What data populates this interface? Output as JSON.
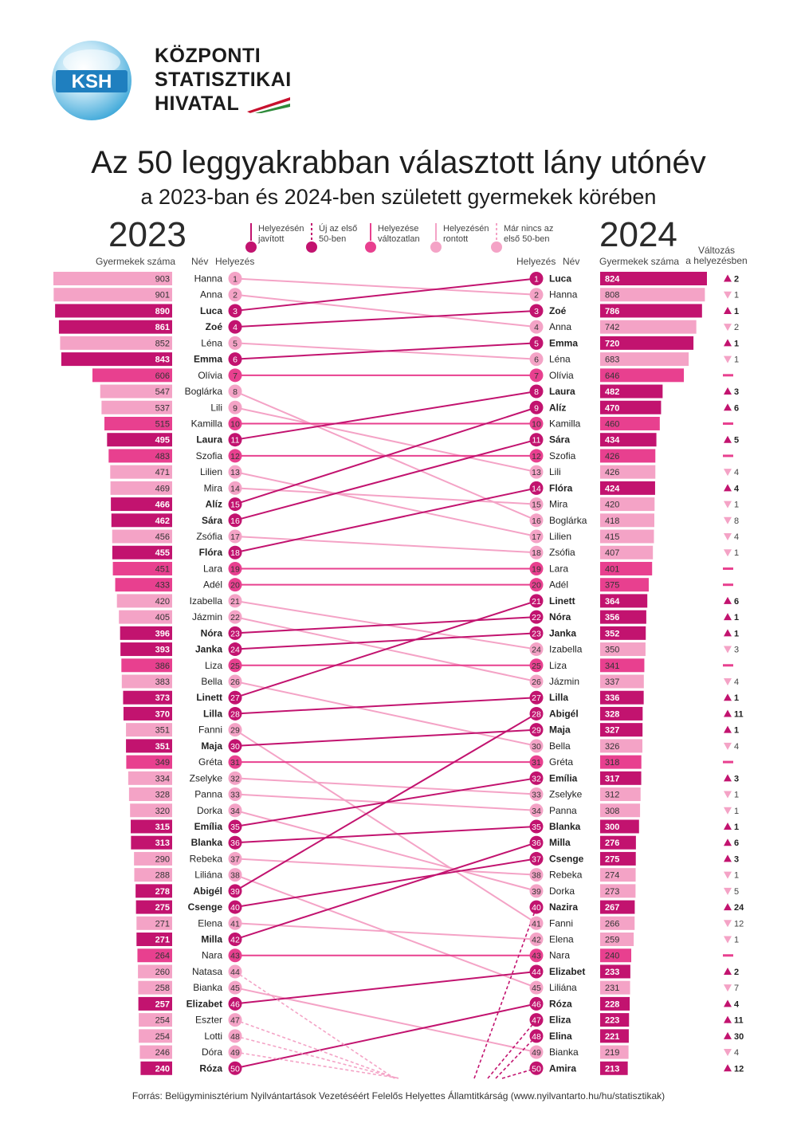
{
  "header": {
    "logo_mark": "KSH",
    "org_lines": [
      "KÖZPONTI",
      "STATISZTIKAI",
      "HIVATAL"
    ],
    "title": "Az 50 leggyakrabban választott lány utónév",
    "subtitle": "a 2023-ban és 2024-ben született gyermekek körében"
  },
  "columns": {
    "year_left": "2023",
    "year_right": "2024",
    "count_label": "Gyermekek száma",
    "name_label": "Név",
    "rank_label": "Helyezés",
    "change_label_1": "Változás",
    "change_label_2": "a helyezésben"
  },
  "legend": [
    {
      "line1": "Helyezésén",
      "line2": "javított",
      "kind": "improved"
    },
    {
      "line1": "Új az első",
      "line2": "50-ben",
      "kind": "new"
    },
    {
      "line1": "Helyezése",
      "line2": "változatlan",
      "kind": "same"
    },
    {
      "line1": "Helyezésén",
      "line2": "rontott",
      "kind": "worse"
    },
    {
      "line1": "Már nincs az",
      "line2": "első 50-ben",
      "kind": "dropped"
    }
  ],
  "colors": {
    "improved": "#c2136f",
    "same": "#e8408f",
    "worse": "#f4a3c6",
    "new": "#c2136f",
    "dropped": "#f4a3c6"
  },
  "source": "Forrás: Belügyminisztérium Nyilvántartások Vezetéséért Felelős Helyettes Államtitkárság (www.nyilvantarto.hu/hu/statisztikak)",
  "chart_data": {
    "type": "bump",
    "left": {
      "year": "2023",
      "rows": [
        {
          "rank": 1,
          "name": "Hanna",
          "count": 903,
          "status": "worse"
        },
        {
          "rank": 2,
          "name": "Anna",
          "count": 901,
          "status": "worse"
        },
        {
          "rank": 3,
          "name": "Luca",
          "count": 890,
          "status": "improved"
        },
        {
          "rank": 4,
          "name": "Zoé",
          "count": 861,
          "status": "improved"
        },
        {
          "rank": 5,
          "name": "Léna",
          "count": 852,
          "status": "worse"
        },
        {
          "rank": 6,
          "name": "Emma",
          "count": 843,
          "status": "improved"
        },
        {
          "rank": 7,
          "name": "Olívia",
          "count": 606,
          "status": "same"
        },
        {
          "rank": 8,
          "name": "Boglárka",
          "count": 547,
          "status": "worse"
        },
        {
          "rank": 9,
          "name": "Lili",
          "count": 537,
          "status": "worse"
        },
        {
          "rank": 10,
          "name": "Kamilla",
          "count": 515,
          "status": "same"
        },
        {
          "rank": 11,
          "name": "Laura",
          "count": 495,
          "status": "improved"
        },
        {
          "rank": 12,
          "name": "Szofia",
          "count": 483,
          "status": "same"
        },
        {
          "rank": 13,
          "name": "Lilien",
          "count": 471,
          "status": "worse"
        },
        {
          "rank": 14,
          "name": "Mira",
          "count": 469,
          "status": "worse"
        },
        {
          "rank": 15,
          "name": "Alíz",
          "count": 466,
          "status": "improved"
        },
        {
          "rank": 16,
          "name": "Sára",
          "count": 462,
          "status": "improved"
        },
        {
          "rank": 17,
          "name": "Zsófia",
          "count": 456,
          "status": "worse"
        },
        {
          "rank": 18,
          "name": "Flóra",
          "count": 455,
          "status": "improved"
        },
        {
          "rank": 19,
          "name": "Lara",
          "count": 451,
          "status": "same"
        },
        {
          "rank": 20,
          "name": "Adél",
          "count": 433,
          "status": "same"
        },
        {
          "rank": 21,
          "name": "Izabella",
          "count": 420,
          "status": "worse"
        },
        {
          "rank": 22,
          "name": "Jázmin",
          "count": 405,
          "status": "worse"
        },
        {
          "rank": 23,
          "name": "Nóra",
          "count": 396,
          "status": "improved"
        },
        {
          "rank": 24,
          "name": "Janka",
          "count": 393,
          "status": "improved"
        },
        {
          "rank": 25,
          "name": "Liza",
          "count": 386,
          "status": "same"
        },
        {
          "rank": 26,
          "name": "Bella",
          "count": 383,
          "status": "worse"
        },
        {
          "rank": 27,
          "name": "Linett",
          "count": 373,
          "status": "improved"
        },
        {
          "rank": 28,
          "name": "Lilla",
          "count": 370,
          "status": "improved"
        },
        {
          "rank": 29,
          "name": "Fanni",
          "count": 351,
          "status": "worse"
        },
        {
          "rank": 30,
          "name": "Maja",
          "count": 351,
          "status": "improved"
        },
        {
          "rank": 31,
          "name": "Gréta",
          "count": 349,
          "status": "same"
        },
        {
          "rank": 32,
          "name": "Zselyke",
          "count": 334,
          "status": "worse"
        },
        {
          "rank": 33,
          "name": "Panna",
          "count": 328,
          "status": "worse"
        },
        {
          "rank": 34,
          "name": "Dorka",
          "count": 320,
          "status": "worse"
        },
        {
          "rank": 35,
          "name": "Emília",
          "count": 315,
          "status": "improved"
        },
        {
          "rank": 36,
          "name": "Blanka",
          "count": 313,
          "status": "improved"
        },
        {
          "rank": 37,
          "name": "Rebeka",
          "count": 290,
          "status": "worse"
        },
        {
          "rank": 38,
          "name": "Liliána",
          "count": 288,
          "status": "worse"
        },
        {
          "rank": 39,
          "name": "Abigél",
          "count": 278,
          "status": "improved"
        },
        {
          "rank": 40,
          "name": "Csenge",
          "count": 275,
          "status": "improved"
        },
        {
          "rank": 41,
          "name": "Elena",
          "count": 271,
          "status": "worse"
        },
        {
          "rank": 42,
          "name": "Milla",
          "count": 271,
          "status": "improved"
        },
        {
          "rank": 43,
          "name": "Nara",
          "count": 264,
          "status": "same"
        },
        {
          "rank": 44,
          "name": "Natasa",
          "count": 260,
          "status": "dropped"
        },
        {
          "rank": 45,
          "name": "Bianka",
          "count": 258,
          "status": "worse"
        },
        {
          "rank": 46,
          "name": "Elizabet",
          "count": 257,
          "status": "improved"
        },
        {
          "rank": 47,
          "name": "Eszter",
          "count": 254,
          "status": "dropped"
        },
        {
          "rank": 48,
          "name": "Lotti",
          "count": 254,
          "status": "dropped"
        },
        {
          "rank": 49,
          "name": "Dóra",
          "count": 246,
          "status": "dropped"
        },
        {
          "rank": 50,
          "name": "Róza",
          "count": 240,
          "status": "improved"
        }
      ]
    },
    "right": {
      "year": "2024",
      "rows": [
        {
          "rank": 1,
          "name": "Luca",
          "count": 824,
          "status": "improved",
          "change": "2"
        },
        {
          "rank": 2,
          "name": "Hanna",
          "count": 808,
          "status": "worse",
          "change": "1"
        },
        {
          "rank": 3,
          "name": "Zoé",
          "count": 786,
          "status": "improved",
          "change": "1"
        },
        {
          "rank": 4,
          "name": "Anna",
          "count": 742,
          "status": "worse",
          "change": "2"
        },
        {
          "rank": 5,
          "name": "Emma",
          "count": 720,
          "status": "improved",
          "change": "1"
        },
        {
          "rank": 6,
          "name": "Léna",
          "count": 683,
          "status": "worse",
          "change": "1"
        },
        {
          "rank": 7,
          "name": "Olívia",
          "count": 646,
          "status": "same",
          "change": ""
        },
        {
          "rank": 8,
          "name": "Laura",
          "count": 482,
          "status": "improved",
          "change": "3"
        },
        {
          "rank": 9,
          "name": "Alíz",
          "count": 470,
          "status": "improved",
          "change": "6"
        },
        {
          "rank": 10,
          "name": "Kamilla",
          "count": 460,
          "status": "same",
          "change": ""
        },
        {
          "rank": 11,
          "name": "Sára",
          "count": 434,
          "status": "improved",
          "change": "5"
        },
        {
          "rank": 12,
          "name": "Szofia",
          "count": 426,
          "status": "same",
          "change": ""
        },
        {
          "rank": 13,
          "name": "Lili",
          "count": 426,
          "status": "worse",
          "change": "4"
        },
        {
          "rank": 14,
          "name": "Flóra",
          "count": 424,
          "status": "improved",
          "change": "4"
        },
        {
          "rank": 15,
          "name": "Mira",
          "count": 420,
          "status": "worse",
          "change": "1"
        },
        {
          "rank": 16,
          "name": "Boglárka",
          "count": 418,
          "status": "worse",
          "change": "8"
        },
        {
          "rank": 17,
          "name": "Lilien",
          "count": 415,
          "status": "worse",
          "change": "4"
        },
        {
          "rank": 18,
          "name": "Zsófia",
          "count": 407,
          "status": "worse",
          "change": "1"
        },
        {
          "rank": 19,
          "name": "Lara",
          "count": 401,
          "status": "same",
          "change": ""
        },
        {
          "rank": 20,
          "name": "Adél",
          "count": 375,
          "status": "same",
          "change": ""
        },
        {
          "rank": 21,
          "name": "Linett",
          "count": 364,
          "status": "improved",
          "change": "6"
        },
        {
          "rank": 22,
          "name": "Nóra",
          "count": 356,
          "status": "improved",
          "change": "1"
        },
        {
          "rank": 23,
          "name": "Janka",
          "count": 352,
          "status": "improved",
          "change": "1"
        },
        {
          "rank": 24,
          "name": "Izabella",
          "count": 350,
          "status": "worse",
          "change": "3"
        },
        {
          "rank": 25,
          "name": "Liza",
          "count": 341,
          "status": "same",
          "change": ""
        },
        {
          "rank": 26,
          "name": "Jázmin",
          "count": 337,
          "status": "worse",
          "change": "4"
        },
        {
          "rank": 27,
          "name": "Lilla",
          "count": 336,
          "status": "improved",
          "change": "1"
        },
        {
          "rank": 28,
          "name": "Abigél",
          "count": 328,
          "status": "improved",
          "change": "11"
        },
        {
          "rank": 29,
          "name": "Maja",
          "count": 327,
          "status": "improved",
          "change": "1"
        },
        {
          "rank": 30,
          "name": "Bella",
          "count": 326,
          "status": "worse",
          "change": "4"
        },
        {
          "rank": 31,
          "name": "Gréta",
          "count": 318,
          "status": "same",
          "change": ""
        },
        {
          "rank": 32,
          "name": "Emília",
          "count": 317,
          "status": "improved",
          "change": "3"
        },
        {
          "rank": 33,
          "name": "Zselyke",
          "count": 312,
          "status": "worse",
          "change": "1"
        },
        {
          "rank": 34,
          "name": "Panna",
          "count": 308,
          "status": "worse",
          "change": "1"
        },
        {
          "rank": 35,
          "name": "Blanka",
          "count": 300,
          "status": "improved",
          "change": "1"
        },
        {
          "rank": 36,
          "name": "Milla",
          "count": 276,
          "status": "improved",
          "change": "6"
        },
        {
          "rank": 37,
          "name": "Csenge",
          "count": 275,
          "status": "improved",
          "change": "3"
        },
        {
          "rank": 38,
          "name": "Rebeka",
          "count": 274,
          "status": "worse",
          "change": "1"
        },
        {
          "rank": 39,
          "name": "Dorka",
          "count": 273,
          "status": "worse",
          "change": "5"
        },
        {
          "rank": 40,
          "name": "Nazira",
          "count": 267,
          "status": "improved",
          "change": "24"
        },
        {
          "rank": 41,
          "name": "Fanni",
          "count": 266,
          "status": "worse",
          "change": "12"
        },
        {
          "rank": 42,
          "name": "Elena",
          "count": 259,
          "status": "worse",
          "change": "1"
        },
        {
          "rank": 43,
          "name": "Nara",
          "count": 240,
          "status": "same",
          "change": ""
        },
        {
          "rank": 44,
          "name": "Elizabet",
          "count": 233,
          "status": "improved",
          "change": "2"
        },
        {
          "rank": 45,
          "name": "Liliána",
          "count": 231,
          "status": "worse",
          "change": "7"
        },
        {
          "rank": 46,
          "name": "Róza",
          "count": 228,
          "status": "improved",
          "change": "4"
        },
        {
          "rank": 47,
          "name": "Eliza",
          "count": 223,
          "status": "improved",
          "change": "11"
        },
        {
          "rank": 48,
          "name": "Elina",
          "count": 221,
          "status": "improved",
          "change": "30"
        },
        {
          "rank": 49,
          "name": "Bianka",
          "count": 219,
          "status": "worse",
          "change": "4"
        },
        {
          "rank": 50,
          "name": "Amira",
          "count": 213,
          "status": "improved",
          "change": "12"
        }
      ]
    },
    "connections": [
      {
        "name": "Hanna",
        "from": 1,
        "to": 2
      },
      {
        "name": "Anna",
        "from": 2,
        "to": 4
      },
      {
        "name": "Luca",
        "from": 3,
        "to": 1
      },
      {
        "name": "Zoé",
        "from": 4,
        "to": 3
      },
      {
        "name": "Léna",
        "from": 5,
        "to": 6
      },
      {
        "name": "Emma",
        "from": 6,
        "to": 5
      },
      {
        "name": "Olívia",
        "from": 7,
        "to": 7
      },
      {
        "name": "Boglárka",
        "from": 8,
        "to": 16
      },
      {
        "name": "Lili",
        "from": 9,
        "to": 13
      },
      {
        "name": "Kamilla",
        "from": 10,
        "to": 10
      },
      {
        "name": "Laura",
        "from": 11,
        "to": 8
      },
      {
        "name": "Szofia",
        "from": 12,
        "to": 12
      },
      {
        "name": "Lilien",
        "from": 13,
        "to": 17
      },
      {
        "name": "Mira",
        "from": 14,
        "to": 15
      },
      {
        "name": "Alíz",
        "from": 15,
        "to": 9
      },
      {
        "name": "Sára",
        "from": 16,
        "to": 11
      },
      {
        "name": "Zsófia",
        "from": 17,
        "to": 18
      },
      {
        "name": "Flóra",
        "from": 18,
        "to": 14
      },
      {
        "name": "Lara",
        "from": 19,
        "to": 19
      },
      {
        "name": "Adél",
        "from": 20,
        "to": 20
      },
      {
        "name": "Izabella",
        "from": 21,
        "to": 24
      },
      {
        "name": "Jázmin",
        "from": 22,
        "to": 26
      },
      {
        "name": "Nóra",
        "from": 23,
        "to": 22
      },
      {
        "name": "Janka",
        "from": 24,
        "to": 23
      },
      {
        "name": "Liza",
        "from": 25,
        "to": 25
      },
      {
        "name": "Bella",
        "from": 26,
        "to": 30
      },
      {
        "name": "Linett",
        "from": 27,
        "to": 21
      },
      {
        "name": "Lilla",
        "from": 28,
        "to": 27
      },
      {
        "name": "Fanni",
        "from": 29,
        "to": 41
      },
      {
        "name": "Maja",
        "from": 30,
        "to": 29
      },
      {
        "name": "Gréta",
        "from": 31,
        "to": 31
      },
      {
        "name": "Zselyke",
        "from": 32,
        "to": 33
      },
      {
        "name": "Panna",
        "from": 33,
        "to": 34
      },
      {
        "name": "Dorka",
        "from": 34,
        "to": 39
      },
      {
        "name": "Emília",
        "from": 35,
        "to": 32
      },
      {
        "name": "Blanka",
        "from": 36,
        "to": 35
      },
      {
        "name": "Rebeka",
        "from": 37,
        "to": 38
      },
      {
        "name": "Liliána",
        "from": 38,
        "to": 45
      },
      {
        "name": "Abigél",
        "from": 39,
        "to": 28
      },
      {
        "name": "Csenge",
        "from": 40,
        "to": 37
      },
      {
        "name": "Elena",
        "from": 41,
        "to": 42
      },
      {
        "name": "Milla",
        "from": 42,
        "to": 36
      },
      {
        "name": "Nara",
        "from": 43,
        "to": 43
      },
      {
        "name": "Bianka",
        "from": 45,
        "to": 49
      },
      {
        "name": "Elizabet",
        "from": 46,
        "to": 44
      },
      {
        "name": "Róza",
        "from": 50,
        "to": 46
      }
    ],
    "new_entries": [
      40,
      47,
      48,
      50
    ],
    "dropped_out": [
      44,
      47,
      48,
      49
    ]
  }
}
